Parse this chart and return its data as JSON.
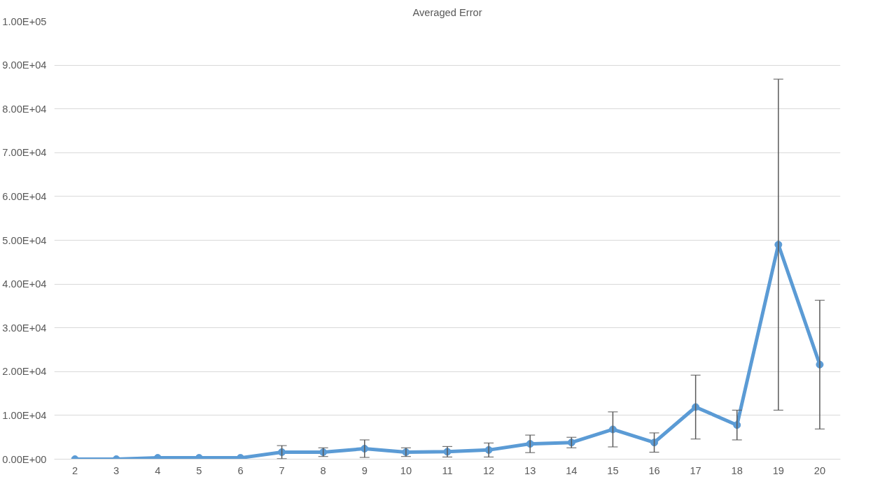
{
  "chart_data": {
    "type": "line",
    "title": "Averaged Error",
    "categories": [
      "2",
      "3",
      "4",
      "5",
      "6",
      "7",
      "8",
      "9",
      "10",
      "11",
      "12",
      "13",
      "14",
      "15",
      "16",
      "17",
      "18",
      "19",
      "20"
    ],
    "series": [
      {
        "color": "#5b9bd5",
        "values": [
          0,
          0,
          300,
          300,
          300,
          1600,
          1600,
          2400,
          1600,
          1700,
          2100,
          3500,
          3800,
          6800,
          3800,
          11900,
          7800,
          49000,
          21600
        ],
        "errors": [
          null,
          null,
          null,
          null,
          null,
          1500,
          1000,
          2000,
          1000,
          1200,
          1600,
          2000,
          1200,
          4000,
          2200,
          7300,
          3400,
          37800,
          14700
        ]
      }
    ],
    "ylim": [
      0,
      100000
    ],
    "yticks": [
      {
        "value": 0,
        "label": "0.00E+00"
      },
      {
        "value": 10000,
        "label": "1.00E+04"
      },
      {
        "value": 20000,
        "label": "2.00E+04"
      },
      {
        "value": 30000,
        "label": "3.00E+04"
      },
      {
        "value": 40000,
        "label": "4.00E+04"
      },
      {
        "value": 50000,
        "label": "5.00E+04"
      },
      {
        "value": 60000,
        "label": "6.00E+04"
      },
      {
        "value": 70000,
        "label": "7.00E+04"
      },
      {
        "value": 80000,
        "label": "8.00E+04"
      },
      {
        "value": 90000,
        "label": "9.00E+04"
      },
      {
        "value": 100000,
        "label": "1.00E+05"
      }
    ],
    "grid": "y",
    "marker": "circle",
    "line_style": "solid"
  }
}
